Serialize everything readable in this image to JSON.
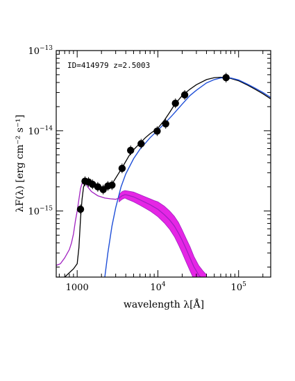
{
  "chart_data": {
    "type": "scatter",
    "title": "",
    "annotation": "ID=414979 z=2.5003",
    "xlabel": "wavelength λ[Å]",
    "ylabel": "λF(λ) [erg cm⁻² s⁻¹]",
    "x_scale": "log",
    "y_scale": "log",
    "xlim": [
      550,
      250000
    ],
    "ylim": [
      1.5e-16,
      1e-13
    ],
    "grid": false,
    "legend": "none",
    "x_tick_labels": [
      {
        "value": 1000,
        "base": "1000",
        "exp": ""
      },
      {
        "value": 10000,
        "base": "10",
        "exp": "4"
      },
      {
        "value": 100000,
        "base": "10",
        "exp": "5"
      }
    ],
    "y_tick_labels": [
      {
        "value": 1e-15,
        "base": "10",
        "exp": "−15"
      },
      {
        "value": 1e-14,
        "base": "10",
        "exp": "−14"
      },
      {
        "value": 1e-13,
        "base": "10",
        "exp": "−13"
      }
    ],
    "colors": {
      "points": "#000000",
      "total_model": "#000000",
      "stellar_component": "#1f4fd8",
      "agn_template": "#a020c0",
      "agn_band": "#e100e1"
    },
    "series": [
      {
        "kind": "points",
        "x": [
          1100,
          1250,
          1380,
          1550,
          1800,
          2100,
          2400,
          2700,
          3600,
          4600,
          6200,
          9800,
          12500,
          16500,
          21500,
          70000
        ],
        "y": [
          1.05e-15,
          2.35e-15,
          2.3e-15,
          2.15e-15,
          2e-15,
          1.85e-15,
          2.05e-15,
          2.1e-15,
          3.4e-15,
          5.7e-15,
          6.9e-15,
          9.9e-15,
          1.22e-14,
          2.2e-14,
          2.8e-14,
          4.6e-14
        ]
      },
      {
        "kind": "line",
        "x": [
          700,
          800,
          900,
          1000,
          1050,
          1100,
          1150,
          1200,
          1300,
          1500,
          1800,
          2100,
          2400,
          2800,
          3300,
          3800,
          4400,
          5000,
          6000,
          7000,
          8000,
          9000,
          10000,
          12000,
          14000,
          16000,
          20000,
          25000,
          30000,
          40000,
          50000,
          60000,
          70000,
          80000,
          100000,
          130000,
          160000,
          200000,
          250000
        ],
        "y": [
          1.5e-16,
          1.7e-16,
          1.9e-16,
          2.2e-16,
          3.5e-16,
          8e-16,
          1.4e-15,
          2e-15,
          2.4e-15,
          2.2e-15,
          2e-15,
          1.9e-15,
          2e-15,
          2.3e-15,
          3e-15,
          3.8e-15,
          4.9e-15,
          5.8e-15,
          7e-15,
          8.2e-15,
          9.2e-15,
          1e-14,
          1.08e-14,
          1.35e-14,
          1.7e-14,
          2.1e-14,
          2.75e-14,
          3.3e-14,
          3.75e-14,
          4.35e-14,
          4.6e-14,
          4.65e-14,
          4.6e-14,
          4.5e-14,
          4.2e-14,
          3.7e-14,
          3.3e-14,
          2.9e-14,
          2.5e-14
        ]
      },
      {
        "kind": "line",
        "x": [
          2200,
          2400,
          2700,
          3000,
          3500,
          4000,
          5000,
          6000,
          7000,
          8000,
          10000,
          12000,
          15000,
          20000,
          25000,
          30000,
          40000,
          50000,
          60000,
          70000,
          80000,
          100000,
          130000,
          160000,
          200000,
          250000
        ],
        "y": [
          1.5e-16,
          3e-16,
          6.5e-16,
          1.1e-15,
          2e-15,
          2.9e-15,
          4.5e-15,
          5.9e-15,
          7e-15,
          8.2e-15,
          1.02e-14,
          1.22e-14,
          1.55e-14,
          2.15e-14,
          2.75e-14,
          3.2e-14,
          3.95e-14,
          4.35e-14,
          4.55e-14,
          4.6e-14,
          4.55e-14,
          4.3e-14,
          3.8e-14,
          3.4e-14,
          3e-14,
          2.6e-14
        ]
      },
      {
        "kind": "line",
        "x": [
          550,
          620,
          700,
          800,
          850,
          900,
          950,
          1000,
          1050,
          1100,
          1150,
          1200,
          1260,
          1350,
          1500,
          1800,
          2200,
          2600,
          3000,
          3300,
          3600,
          3900,
          4200,
          5000,
          6000,
          7000,
          8000,
          9000,
          10000,
          12000,
          14000,
          16000,
          18000,
          20000,
          22000,
          25000,
          28000,
          32000,
          36000,
          40000
        ],
        "y": [
          2.1e-16,
          2.2e-16,
          2.6e-16,
          3.3e-16,
          4e-16,
          5.2e-16,
          7.5e-16,
          1e-15,
          1.4e-15,
          1.9e-15,
          2.2e-15,
          2.35e-15,
          2.25e-15,
          2e-15,
          1.75e-15,
          1.55e-15,
          1.45e-15,
          1.42e-15,
          1.4e-15,
          1.45e-15,
          1.55e-15,
          1.6e-15,
          1.58e-15,
          1.5e-15,
          1.38e-15,
          1.28e-15,
          1.2e-15,
          1.12e-15,
          1.05e-15,
          9e-16,
          7.7e-16,
          6.5e-16,
          5.3e-16,
          4.3e-16,
          3.5e-16,
          2.6e-16,
          2e-16,
          1.6e-16,
          1.4e-16,
          1.3e-16
        ]
      },
      {
        "kind": "band",
        "x": [
          3300,
          3600,
          3900,
          4200,
          5000,
          6000,
          7000,
          8000,
          9000,
          10000,
          12000,
          14000,
          16000,
          18000,
          20000,
          22000,
          25000,
          28000,
          32000,
          36000,
          40000
        ],
        "y_low": [
          1.3e-15,
          1.4e-15,
          1.45e-15,
          1.4e-15,
          1.3e-15,
          1.18e-15,
          1.08e-15,
          1e-15,
          9.2e-16,
          8.5e-16,
          7.1e-16,
          5.9e-16,
          4.8e-16,
          3.8e-16,
          3e-16,
          2.4e-16,
          1.8e-16,
          1.4e-16,
          1.2e-16,
          1.1e-16,
          1e-16
        ],
        "y_high": [
          1.6e-15,
          1.75e-15,
          1.8e-15,
          1.78e-15,
          1.72e-15,
          1.6e-15,
          1.5e-15,
          1.42e-15,
          1.35e-15,
          1.3e-15,
          1.15e-15,
          1e-15,
          8.6e-16,
          7.2e-16,
          5.8e-16,
          4.7e-16,
          3.6e-16,
          2.7e-16,
          2.1e-16,
          1.8e-16,
          1.6e-16
        ]
      }
    ]
  }
}
